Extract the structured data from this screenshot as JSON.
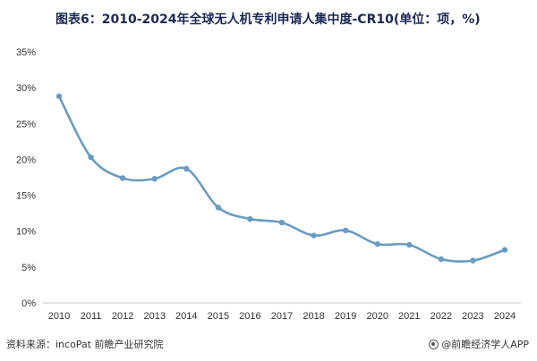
{
  "title": "图表6：2010-2024年全球无人机专利申请人集中度-CR10(单位：项，%)",
  "footer": {
    "source": "资料来源：incoPat 前瞻产业研究院",
    "brand": "@前瞻经济学人APP",
    "brand_icon": "qianzhan-logo-icon"
  },
  "colors": {
    "line": "#6a9cc2",
    "point": "#6a9cc2",
    "axis": "#c8c8c8",
    "title": "#1a2a56"
  },
  "chart_data": {
    "type": "line",
    "title": "图表6：2010-2024年全球无人机专利申请人集中度-CR10(单位：项，%)",
    "x": [
      "2010",
      "2011",
      "2012",
      "2013",
      "2014",
      "2015",
      "2016",
      "2017",
      "2018",
      "2019",
      "2020",
      "2021",
      "2022",
      "2023",
      "2024"
    ],
    "series": [
      {
        "values": [
          28.8,
          20.3,
          17.4,
          17.3,
          18.7,
          13.3,
          11.7,
          11.2,
          9.4,
          10.1,
          8.2,
          8.1,
          6.1,
          5.9,
          7.4
        ]
      }
    ],
    "y_ticks": [
      "0%",
      "5%",
      "10%",
      "15%",
      "20%",
      "25%",
      "30%",
      "35%"
    ],
    "ylim": [
      0,
      35
    ],
    "grid": false,
    "legend": "none",
    "smooth": true
  }
}
